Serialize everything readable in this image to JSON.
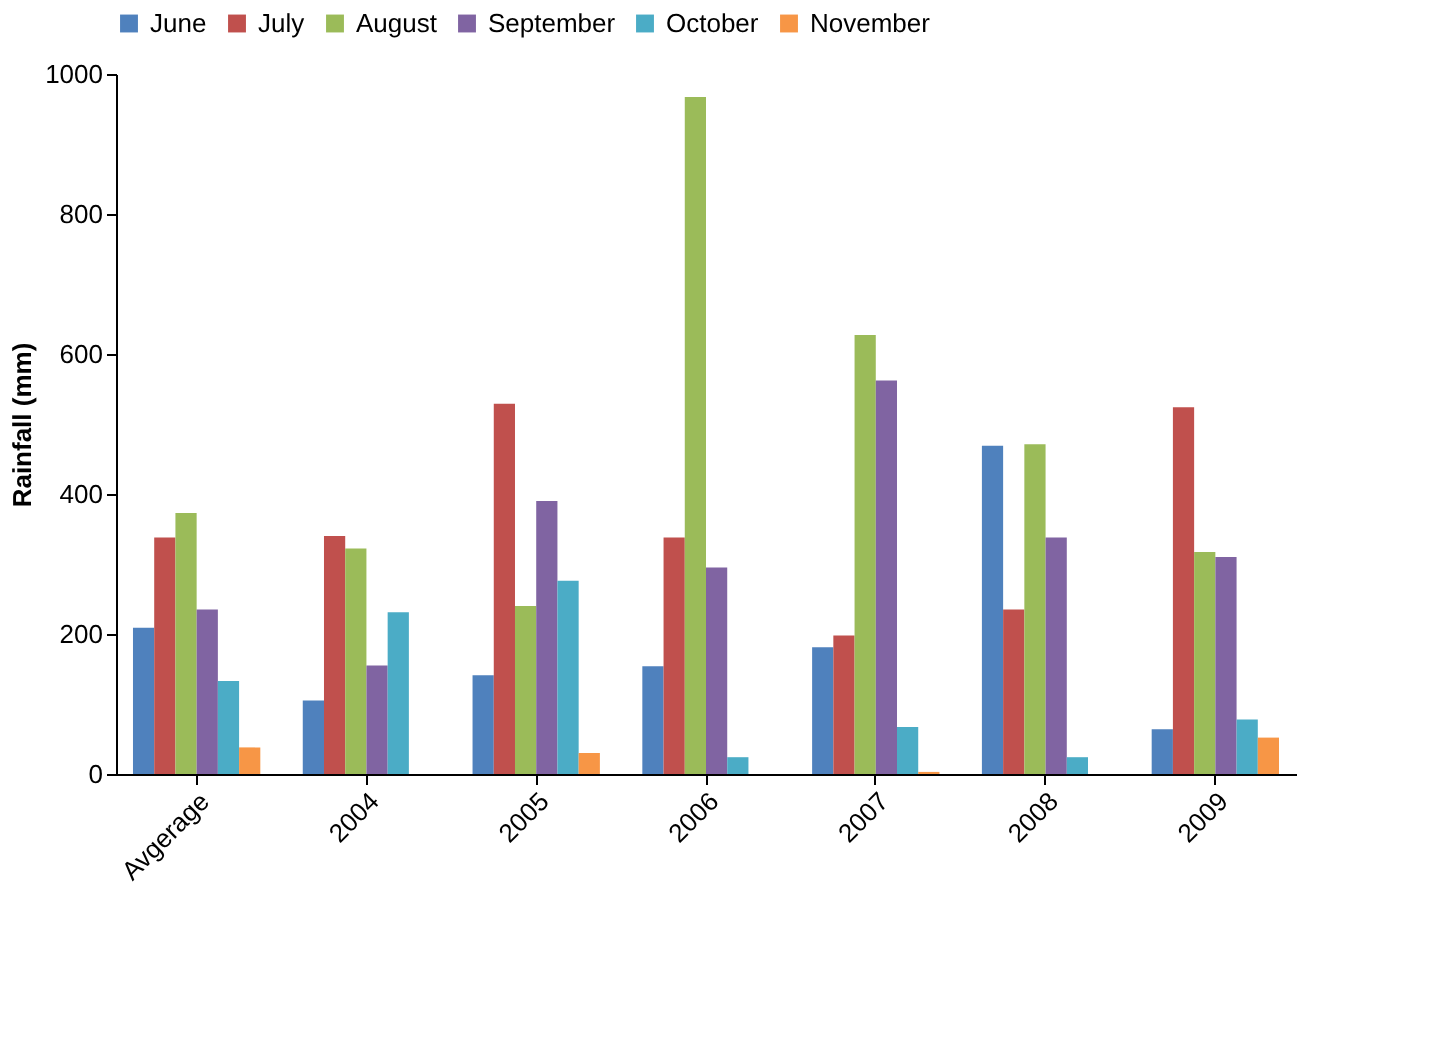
{
  "chart_data": {
    "type": "bar",
    "ylabel": "Rainfall (mm)",
    "categories": [
      "Avgerage",
      "2004",
      "2005",
      "2006",
      "2007",
      "2008",
      "2009"
    ],
    "ylim": [
      0,
      1000
    ],
    "yticks": [
      0,
      200,
      400,
      600,
      800,
      1000
    ],
    "grid": false,
    "legend": "top",
    "series": [
      {
        "name": "June",
        "color": "#4f81bd",
        "values": [
          209,
          105,
          141,
          154,
          181,
          469,
          64
        ]
      },
      {
        "name": "July",
        "color": "#c0504d",
        "values": [
          338,
          340,
          529,
          338,
          198,
          235,
          524
        ]
      },
      {
        "name": "August",
        "color": "#9bbb59",
        "values": [
          373,
          322,
          240,
          967,
          627,
          471,
          317
        ]
      },
      {
        "name": "September",
        "color": "#8064a2",
        "values": [
          235,
          155,
          390,
          295,
          562,
          338,
          310
        ]
      },
      {
        "name": "October",
        "color": "#4bacc6",
        "values": [
          133,
          231,
          276,
          24,
          67,
          24,
          78
        ]
      },
      {
        "name": "November",
        "color": "#f79646",
        "values": [
          38,
          null,
          30,
          null,
          3,
          null,
          52
        ]
      }
    ]
  }
}
